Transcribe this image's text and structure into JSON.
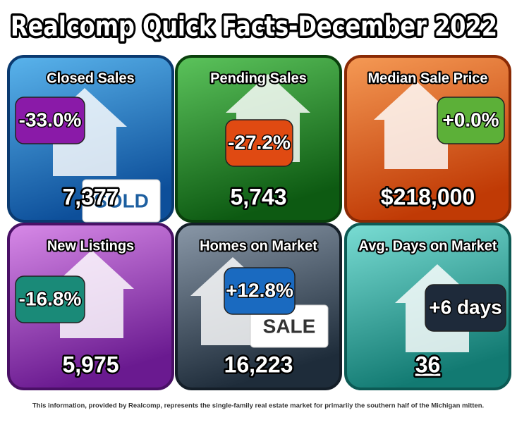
{
  "title": "Realcomp Quick Facts-December 2022",
  "tiles": [
    {
      "label": "Closed Sales",
      "change": "-33.0%",
      "value": "7,377",
      "icon_text": "SOLD"
    },
    {
      "label": "Pending Sales",
      "change": "-27.2%",
      "value": "5,743"
    },
    {
      "label": "Median Sale Price",
      "change": "+0.0%",
      "value": "$218,000"
    },
    {
      "label": "New Listings",
      "change": "-16.8%",
      "value": "5,975"
    },
    {
      "label": "Homes on Market",
      "change": "+12.8%",
      "value": "16,223",
      "icon_text": "SALE"
    },
    {
      "label": "Avg. Days on Market",
      "change": "+6 days",
      "value": "36"
    }
  ],
  "footer": "This information, provided by Realcomp, represents the single-family real estate market for primariiy the southern half of the Michigan mitten."
}
